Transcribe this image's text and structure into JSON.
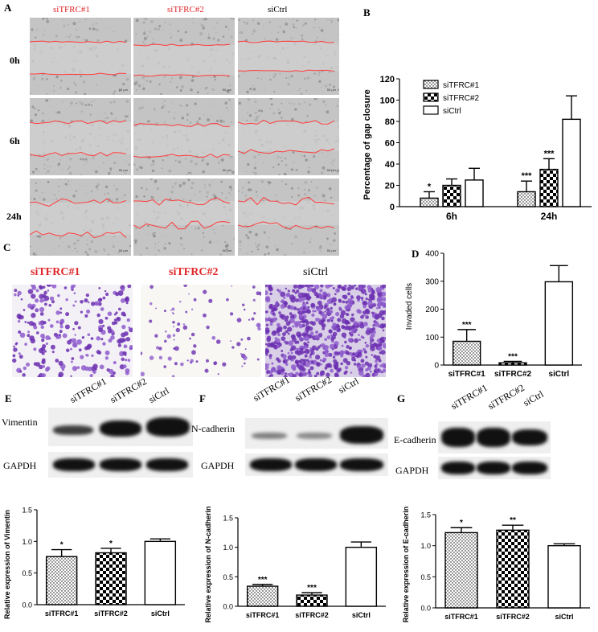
{
  "panel_a": {
    "label": "A",
    "columns": [
      "siTFRC#1",
      "siTFRC#2",
      "siCtrl"
    ],
    "rows": [
      "0h",
      "6h",
      "24h"
    ],
    "scale_text": "50 μm"
  },
  "panel_c": {
    "label": "C",
    "columns": [
      "siTFRC#1",
      "siTFRC#2",
      "siCtrl"
    ]
  },
  "blots": {
    "e": {
      "label": "E",
      "protein": "Vimentin",
      "control": "GAPDH",
      "lanes": [
        "siTFRC#1",
        "siTFRC#2",
        "siCtrl"
      ]
    },
    "f": {
      "label": "F",
      "protein": "N-cadherin",
      "control": "GAPDH",
      "lanes": [
        "siTFRC#1",
        "siTFRC#2",
        "siCtrl"
      ]
    },
    "g": {
      "label": "G",
      "protein": "E-cadherin",
      "control": "GAPDH",
      "lanes": [
        "siTFRC#1",
        "siTFRC#2",
        "siCtrl"
      ]
    }
  },
  "colors": {
    "accent_red": "#e0262a",
    "bar_fill": "#ffffff",
    "stroke": "#000000",
    "micro_bg": "#bdbdbd",
    "stain": "#6b2fb0"
  },
  "chart_data": [
    {
      "id": "B",
      "label": "B",
      "type": "bar",
      "categories": [
        "6h",
        "24h"
      ],
      "series": [
        {
          "name": "siTFRC#1",
          "pattern": "dots",
          "values": [
            8,
            14
          ],
          "errors": [
            6,
            10
          ],
          "sig": [
            "*",
            "***"
          ]
        },
        {
          "name": "siTFRC#2",
          "pattern": "checker",
          "values": [
            20,
            35
          ],
          "errors": [
            6,
            10
          ],
          "sig": [
            "",
            "***"
          ]
        },
        {
          "name": "siCtrl",
          "pattern": "none",
          "values": [
            25,
            82
          ],
          "errors": [
            11,
            22
          ],
          "sig": [
            "",
            ""
          ]
        }
      ],
      "ylabel": "Percentage of gap closure",
      "xlabel": "",
      "ylim": [
        0,
        120
      ],
      "yticks": [
        0,
        20,
        40,
        60,
        80,
        100,
        120
      ],
      "legend": "top-left",
      "grid": false
    },
    {
      "id": "D",
      "label": "D",
      "type": "bar",
      "categories": [
        "siTFRC#1",
        "siTFRC#2",
        "siCtrl"
      ],
      "patterns": [
        "dots",
        "checker",
        "none"
      ],
      "values": [
        85,
        8,
        298
      ],
      "errors": [
        42,
        5,
        58
      ],
      "sig": [
        "***",
        "***",
        ""
      ],
      "ylabel": "Invaded cells",
      "xlabel": "",
      "ylim": [
        0,
        400
      ],
      "yticks": [
        0,
        100,
        200,
        300,
        400
      ],
      "grid": false
    },
    {
      "id": "E",
      "type": "bar",
      "categories": [
        "siTFRC#1",
        "siTFRC#2",
        "siCtrl"
      ],
      "patterns": [
        "dots",
        "checker",
        "none"
      ],
      "values": [
        0.76,
        0.82,
        1.0
      ],
      "errors": [
        0.11,
        0.07,
        0.04
      ],
      "sig": [
        "*",
        "*",
        ""
      ],
      "ylabel": "Relative expression of Vimentin",
      "xlabel": "",
      "ylim": [
        0,
        1.5
      ],
      "yticks": [
        0.0,
        0.5,
        1.0,
        1.5
      ],
      "grid": false
    },
    {
      "id": "F",
      "type": "bar",
      "categories": [
        "siTFRC#1",
        "siTFRC#2",
        "siCtrl"
      ],
      "patterns": [
        "dots",
        "checker",
        "none"
      ],
      "values": [
        0.34,
        0.19,
        1.0
      ],
      "errors": [
        0.03,
        0.04,
        0.09
      ],
      "sig": [
        "***",
        "***",
        ""
      ],
      "ylabel": "Relative expression of N-cadherin",
      "xlabel": "",
      "ylim": [
        0,
        1.5
      ],
      "yticks": [
        0.0,
        0.5,
        1.0,
        1.5
      ],
      "grid": false
    },
    {
      "id": "G",
      "type": "bar",
      "categories": [
        "siTFRC#1",
        "siTFRC#2",
        "siCtrl"
      ],
      "patterns": [
        "dots",
        "checker",
        "none"
      ],
      "values": [
        1.21,
        1.25,
        1.0
      ],
      "errors": [
        0.08,
        0.08,
        0.03
      ],
      "sig": [
        "*",
        "**",
        ""
      ],
      "ylabel": "Relative expression of E-cadherin",
      "xlabel": "",
      "ylim": [
        0,
        1.5
      ],
      "yticks": [
        0.0,
        0.5,
        1.0,
        1.5
      ],
      "grid": false
    }
  ]
}
